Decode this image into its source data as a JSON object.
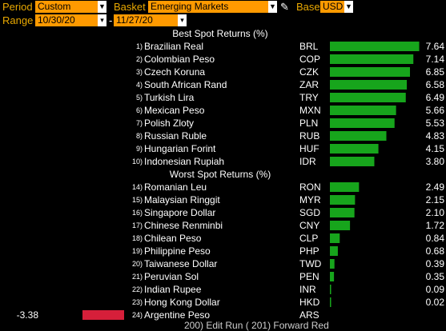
{
  "toolbar": {
    "period_label": "Period",
    "period_value": "Custom",
    "basket_label": "Basket",
    "basket_value": "Emerging Markets",
    "base_label": "Base",
    "base_value": "USD",
    "range_label": "Range",
    "range_start": "10/30/20",
    "range_sep": "-",
    "range_end": "11/27/20"
  },
  "colors": {
    "positive_bar": "#17a51c",
    "negative_bar": "#d61f3a",
    "accent": "#ff9a00"
  },
  "chart_data": [
    {
      "type": "bar",
      "title": "Best Spot Returns (%)",
      "ranks": [
        "1)",
        "2)",
        "3)",
        "4)",
        "5)",
        "6)",
        "7)",
        "8)",
        "9)",
        "10)"
      ],
      "categories": [
        "Brazilian Real",
        "Colombian Peso",
        "Czech Koruna",
        "South African Rand",
        "Turkish Lira",
        "Mexican Peso",
        "Polish Zloty",
        "Russian Ruble",
        "Hungarian Forint",
        "Indonesian Rupiah"
      ],
      "codes": [
        "BRL",
        "COP",
        "CZK",
        "ZAR",
        "TRY",
        "MXN",
        "PLN",
        "RUB",
        "HUF",
        "IDR"
      ],
      "values": [
        7.64,
        7.14,
        6.85,
        6.58,
        6.49,
        5.66,
        5.53,
        4.83,
        4.15,
        3.8
      ],
      "labels": [
        "7.64",
        "7.14",
        "6.85",
        "6.58",
        "6.49",
        "5.66",
        "5.53",
        "4.83",
        "4.15",
        "3.80"
      ]
    },
    {
      "type": "bar",
      "title": "Worst Spot Returns (%)",
      "ranks": [
        "14)",
        "15)",
        "16)",
        "17)",
        "18)",
        "19)",
        "20)",
        "21)",
        "22)",
        "23)",
        "24)"
      ],
      "categories": [
        "Romanian Leu",
        "Malaysian Ringgit",
        "Singapore Dollar",
        "Chinese Renminbi",
        "Chilean Peso",
        "Philippine Peso",
        "Taiwanese Dollar",
        "Peruvian Sol",
        "Indian Rupee",
        "Hong Kong Dollar",
        "Argentine Peso"
      ],
      "codes": [
        "RON",
        "MYR",
        "SGD",
        "CNY",
        "CLP",
        "PHP",
        "TWD",
        "PEN",
        "INR",
        "HKD",
        "ARS"
      ],
      "values": [
        2.49,
        2.15,
        2.1,
        1.72,
        0.84,
        0.68,
        0.39,
        0.35,
        0.09,
        0.02,
        -3.38
      ],
      "labels": [
        "2.49",
        "2.15",
        "2.10",
        "1.72",
        "0.84",
        "0.68",
        "0.39",
        "0.35",
        "0.09",
        "0.02",
        "-3.38"
      ]
    }
  ],
  "footer": "200) Edit Run (  201) Forward Red"
}
